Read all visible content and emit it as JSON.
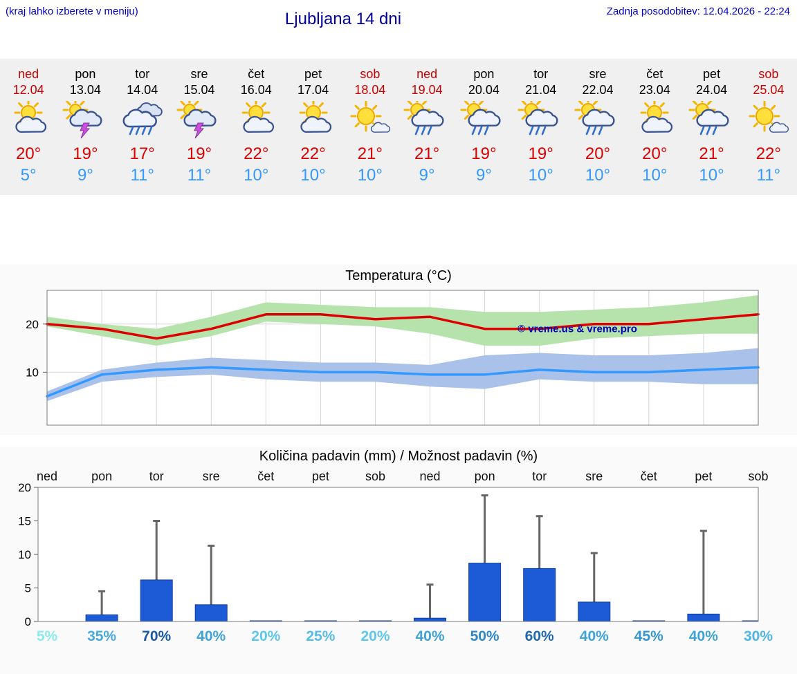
{
  "header": {
    "hint": "(kraj lahko izberete v meniju)",
    "title": "Ljubljana 14 dni",
    "updated": "Zadnja posodobitev: 12.04.2026 - 22:24"
  },
  "theme": {
    "header_blue": "#0000cc",
    "title_blue": "#000099",
    "high_red": "#dd0000",
    "low_blue": "#3399ff",
    "weekend_red": "#cc0000",
    "strip_bg": "#f0f0f0",
    "section_bg": "#fafafa"
  },
  "forecast": {
    "days": [
      {
        "name": "ned",
        "date": "12.04",
        "weekend": true,
        "icon": "partly-sunny",
        "high": "20°",
        "low": "5°"
      },
      {
        "name": "pon",
        "date": "13.04",
        "weekend": false,
        "icon": "thunderstorm",
        "high": "19°",
        "low": "9°"
      },
      {
        "name": "tor",
        "date": "14.04",
        "weekend": false,
        "icon": "rain",
        "high": "17°",
        "low": "11°"
      },
      {
        "name": "sre",
        "date": "15.04",
        "weekend": false,
        "icon": "thunderstorm",
        "high": "19°",
        "low": "11°"
      },
      {
        "name": "čet",
        "date": "16.04",
        "weekend": false,
        "icon": "partly-sunny",
        "high": "22°",
        "low": "10°"
      },
      {
        "name": "pet",
        "date": "17.04",
        "weekend": false,
        "icon": "partly-sunny",
        "high": "22°",
        "low": "10°"
      },
      {
        "name": "sob",
        "date": "18.04",
        "weekend": true,
        "icon": "mostly-sunny",
        "high": "21°",
        "low": "10°"
      },
      {
        "name": "ned",
        "date": "19.04",
        "weekend": true,
        "icon": "sun-rain",
        "high": "21°",
        "low": "9°"
      },
      {
        "name": "pon",
        "date": "20.04",
        "weekend": false,
        "icon": "sun-rain",
        "high": "19°",
        "low": "9°"
      },
      {
        "name": "tor",
        "date": "21.04",
        "weekend": false,
        "icon": "sun-rain",
        "high": "19°",
        "low": "10°"
      },
      {
        "name": "sre",
        "date": "22.04",
        "weekend": false,
        "icon": "sun-rain",
        "high": "20°",
        "low": "10°"
      },
      {
        "name": "čet",
        "date": "23.04",
        "weekend": false,
        "icon": "partly-sunny",
        "high": "20°",
        "low": "10°"
      },
      {
        "name": "pet",
        "date": "24.04",
        "weekend": false,
        "icon": "sun-rain",
        "high": "21°",
        "low": "10°"
      },
      {
        "name": "sob",
        "date": "25.04",
        "weekend": true,
        "icon": "mostly-sunny",
        "high": "22°",
        "low": "11°"
      }
    ]
  },
  "chart_data": [
    {
      "type": "line",
      "title": "Temperatura (°C)",
      "x": [
        "ned",
        "pon",
        "tor",
        "sre",
        "čet",
        "pet",
        "sob",
        "ned",
        "pon",
        "tor",
        "sre",
        "čet",
        "pet",
        "sob"
      ],
      "ylim": [
        -1,
        27
      ],
      "yticks": [
        10,
        20
      ],
      "grid": true,
      "legend": "none",
      "watermark": "© vreme.us & vreme.pro",
      "series": [
        {
          "name": "max-temperature",
          "color": "#dd0000",
          "values": [
            20,
            19,
            17,
            19,
            22,
            22,
            21,
            21.5,
            19,
            19,
            20,
            20,
            21,
            22
          ]
        },
        {
          "name": "min-temperature",
          "color": "#3399ff",
          "values": [
            5,
            9.5,
            10.5,
            11,
            10.5,
            10,
            10,
            9.5,
            9.5,
            10.5,
            10,
            10,
            10.5,
            11
          ]
        }
      ],
      "bands": [
        {
          "name": "max-range",
          "color": "#b5e3ab",
          "upper": [
            21.5,
            20,
            19,
            21.5,
            24.5,
            24,
            23.5,
            23.5,
            22.5,
            22.5,
            23,
            23.5,
            24.5,
            26
          ],
          "lower": [
            19.5,
            17.5,
            15.5,
            17.5,
            20.5,
            20,
            19.5,
            18,
            15.5,
            15.5,
            17,
            17.5,
            18,
            18
          ]
        },
        {
          "name": "min-range",
          "color": "#aac1e9",
          "upper": [
            6,
            10.5,
            12,
            13,
            12.5,
            12,
            12,
            11.5,
            13.5,
            14,
            13.5,
            13.5,
            14,
            15
          ],
          "lower": [
            4,
            8,
            9,
            9.5,
            8.5,
            8,
            8,
            7,
            6.5,
            8.5,
            8,
            8,
            7.5,
            7.5
          ]
        }
      ]
    },
    {
      "type": "bar",
      "title": "Količina padavin (mm) / Možnost padavin (%)",
      "categories": [
        "ned",
        "pon",
        "tor",
        "sre",
        "čet",
        "pet",
        "sob",
        "ned",
        "pon",
        "tor",
        "sre",
        "čet",
        "pet",
        "sob"
      ],
      "values": [
        0,
        1.0,
        6.2,
        2.5,
        0.1,
        0.1,
        0.1,
        0.5,
        8.7,
        7.9,
        2.9,
        0.1,
        1.1,
        0.1
      ],
      "whisker_max": [
        0,
        4.5,
        15.0,
        11.3,
        0,
        0,
        0,
        5.5,
        18.8,
        15.7,
        10.2,
        0,
        13.5,
        0
      ],
      "ylim": [
        0,
        20
      ],
      "yticks": [
        0,
        5,
        10,
        15,
        20
      ],
      "bar_color": "#1d5ad6",
      "whisker_color": "#666666",
      "probabilities": [
        {
          "label": "5%",
          "color": "#8fe9ec"
        },
        {
          "label": "35%",
          "color": "#46abdc"
        },
        {
          "label": "70%",
          "color": "#1a5aa5"
        },
        {
          "label": "40%",
          "color": "#3fa3d8"
        },
        {
          "label": "20%",
          "color": "#60c6ea"
        },
        {
          "label": "25%",
          "color": "#57bde6"
        },
        {
          "label": "20%",
          "color": "#60c6ea"
        },
        {
          "label": "40%",
          "color": "#3fa3d8"
        },
        {
          "label": "50%",
          "color": "#2e87c5"
        },
        {
          "label": "60%",
          "color": "#2268b0"
        },
        {
          "label": "40%",
          "color": "#3fa3d8"
        },
        {
          "label": "45%",
          "color": "#3597d0"
        },
        {
          "label": "40%",
          "color": "#3fa3d8"
        },
        {
          "label": "30%",
          "color": "#4fb5e2"
        }
      ]
    }
  ]
}
